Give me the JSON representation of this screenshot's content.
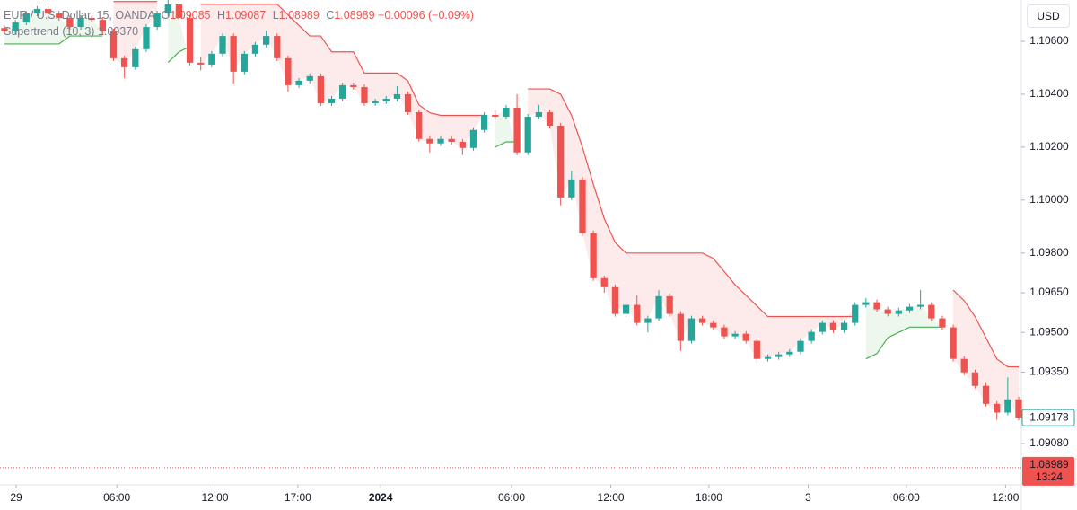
{
  "chart_data": {
    "type": "candlestick",
    "legend": {
      "symbol": "EUR / U.S. Dollar, 15, OANDA",
      "o_label": "O",
      "o": "1.09085",
      "h_label": "H",
      "h": "1.09087",
      "l_label": "L",
      "l": "1.08989",
      "c_label": "C",
      "c": "1.08989",
      "change": "−0.00096 (−0.09%)"
    },
    "currency": "USD",
    "up_color": "#26a69a",
    "down_color": "#ef5350",
    "ylim": [
      1.08924,
      1.10756
    ],
    "yticks": [
      {
        "value": 1.106,
        "label": "1.10600"
      },
      {
        "value": 1.104,
        "label": "1.10400"
      },
      {
        "value": 1.102,
        "label": "1.10200"
      },
      {
        "value": 1.1,
        "label": "1.10000"
      },
      {
        "value": 1.098,
        "label": "1.09800"
      },
      {
        "value": 1.0965,
        "label": "1.09650"
      },
      {
        "value": 1.095,
        "label": "1.09500"
      },
      {
        "value": 1.0935,
        "label": "1.09350"
      },
      {
        "value": 1.0908,
        "label": "1.09080"
      }
    ],
    "xticks": [
      {
        "value": 1.07,
        "label": "29"
      },
      {
        "value": 10.3,
        "label": "06:00"
      },
      {
        "value": 19.3,
        "label": "12:00"
      },
      {
        "value": 26.9,
        "label": "17:00"
      },
      {
        "value": 34.5,
        "label": "2024"
      },
      {
        "value": 46.5,
        "label": "06:00"
      },
      {
        "value": 55.6,
        "label": "12:00"
      },
      {
        "value": 64.6,
        "label": "18:00"
      },
      {
        "value": 73.7,
        "label": "3"
      },
      {
        "value": 82.7,
        "label": "06:00"
      },
      {
        "value": 91.8,
        "label": "12:00"
      }
    ],
    "open": [
      1.1065,
      1.10637,
      1.10671,
      1.10705,
      1.10722,
      1.10705,
      1.10688,
      1.10654,
      1.10688,
      1.10681,
      1.10637,
      1.10536,
      1.10502,
      1.1057,
      1.10654,
      1.10705,
      1.10739,
      1.10688,
      1.10519,
      1.10512,
      1.10553,
      1.1062,
      1.10485,
      1.10553,
      1.10587,
      1.1062,
      1.10536,
      1.10434,
      1.10451,
      1.10468,
      1.10366,
      1.10383,
      1.10434,
      1.10427,
      1.10366,
      1.10373,
      1.10383,
      1.104,
      1.10332,
      1.10231,
      1.10214,
      1.10231,
      1.1022,
      1.10197,
      1.10265,
      1.10322,
      1.10315,
      1.10349,
      1.1018,
      1.10315,
      1.10332,
      1.10281,
      1.1001,
      1.10078,
      1.09875,
      1.09705,
      1.09671,
      1.0957,
      1.09604,
      1.09536,
      1.09553,
      1.09637,
      1.0957,
      1.09468,
      1.09553,
      1.09536,
      1.09519,
      1.09485,
      1.09495,
      1.09468,
      1.094,
      1.09407,
      1.09417,
      1.09427,
      1.09468,
      1.09502,
      1.09536,
      1.09508,
      1.09536,
      1.09604,
      1.09614,
      1.09587,
      1.0957,
      1.09583,
      1.09597,
      1.09604,
      1.09553,
      1.09519,
      1.094,
      1.09349,
      1.09298,
      1.0923,
      1.09197,
      1.09247
    ],
    "high": [
      1.1066,
      1.10681,
      1.10715,
      1.10732,
      1.10732,
      1.10715,
      1.10698,
      1.10698,
      1.10698,
      1.10691,
      1.10647,
      1.10546,
      1.1058,
      1.10664,
      1.10715,
      1.10756,
      1.10749,
      1.10698,
      1.1054,
      1.10563,
      1.1063,
      1.1063,
      1.10563,
      1.10597,
      1.1064,
      1.1063,
      1.10546,
      1.10461,
      1.10478,
      1.10478,
      1.10393,
      1.10444,
      1.10444,
      1.10437,
      1.10383,
      1.10393,
      1.1043,
      1.1041,
      1.10342,
      1.10241,
      1.10241,
      1.10241,
      1.1023,
      1.10275,
      1.10332,
      1.1034,
      1.10359,
      1.104,
      1.10325,
      1.1036,
      1.10342,
      1.10291,
      1.1011,
      1.10088,
      1.09885,
      1.09715,
      1.09681,
      1.09614,
      1.0964,
      1.09563,
      1.0966,
      1.09647,
      1.0958,
      1.09563,
      1.09563,
      1.09546,
      1.09529,
      1.09505,
      1.09505,
      1.09478,
      1.09417,
      1.09427,
      1.09437,
      1.09478,
      1.09512,
      1.09546,
      1.09546,
      1.09546,
      1.09614,
      1.0963,
      1.09624,
      1.09597,
      1.09593,
      1.09607,
      1.0966,
      1.09614,
      1.09563,
      1.09529,
      1.0941,
      1.09359,
      1.09308,
      1.0924,
      1.0933,
      1.09257
    ],
    "low": [
      1.10627,
      1.10627,
      1.10661,
      1.10695,
      1.10695,
      1.10678,
      1.10644,
      1.10644,
      1.10671,
      1.10627,
      1.10526,
      1.1046,
      1.10492,
      1.1056,
      1.10644,
      1.10695,
      1.10678,
      1.10509,
      1.1049,
      1.10502,
      1.10543,
      1.1044,
      1.10475,
      1.10543,
      1.10577,
      1.10526,
      1.1041,
      1.10424,
      1.10441,
      1.10356,
      1.10356,
      1.10373,
      1.10417,
      1.10356,
      1.10356,
      1.10363,
      1.10373,
      1.10322,
      1.10221,
      1.1018,
      1.10204,
      1.1021,
      1.1017,
      1.10187,
      1.10255,
      1.10305,
      1.10305,
      1.1017,
      1.1017,
      1.10305,
      1.10271,
      1.0998,
      1.1,
      1.09865,
      1.09695,
      1.0965,
      1.0956,
      1.0956,
      1.09526,
      1.095,
      1.09543,
      1.0956,
      1.0943,
      1.09458,
      1.09526,
      1.09509,
      1.09475,
      1.09475,
      1.09458,
      1.09385,
      1.0939,
      1.09397,
      1.09407,
      1.09417,
      1.09458,
      1.09492,
      1.09498,
      1.09498,
      1.09526,
      1.09594,
      1.09577,
      1.0956,
      1.0956,
      1.09573,
      1.09587,
      1.09543,
      1.09509,
      1.0939,
      1.09339,
      1.09288,
      1.0922,
      1.0917,
      1.09187,
      1.09168
    ],
    "close": [
      1.10637,
      1.10671,
      1.10705,
      1.10722,
      1.10705,
      1.10688,
      1.10654,
      1.10688,
      1.10681,
      1.10637,
      1.10536,
      1.10502,
      1.1057,
      1.10654,
      1.10705,
      1.10739,
      1.10688,
      1.10519,
      1.10512,
      1.10553,
      1.1062,
      1.10485,
      1.10553,
      1.10587,
      1.1062,
      1.10536,
      1.10434,
      1.10451,
      1.10468,
      1.10366,
      1.10383,
      1.10434,
      1.10427,
      1.10366,
      1.10373,
      1.10383,
      1.104,
      1.10332,
      1.10231,
      1.10214,
      1.10231,
      1.1022,
      1.10197,
      1.10265,
      1.10322,
      1.10315,
      1.10349,
      1.1018,
      1.10315,
      1.10332,
      1.10281,
      1.1001,
      1.10078,
      1.09875,
      1.09705,
      1.09671,
      1.0957,
      1.09604,
      1.09536,
      1.09553,
      1.09637,
      1.0957,
      1.09468,
      1.09553,
      1.09536,
      1.09519,
      1.09485,
      1.09495,
      1.09468,
      1.094,
      1.09407,
      1.09417,
      1.09427,
      1.09468,
      1.09502,
      1.09536,
      1.09508,
      1.09536,
      1.09604,
      1.09614,
      1.09587,
      1.0957,
      1.09583,
      1.09597,
      1.09604,
      1.09553,
      1.09519,
      1.094,
      1.09349,
      1.09298,
      1.0923,
      1.09197,
      1.09247,
      1.09178
    ],
    "supertrend": {
      "name": "Supertrend (10, 3)",
      "value_label": "1.09370",
      "upper_color": "#ef5350",
      "lower_color": "#4caf50",
      "upper": [
        null,
        null,
        null,
        null,
        null,
        null,
        null,
        null,
        null,
        null,
        1.1075,
        1.1075,
        1.1075,
        1.1075,
        1.1075,
        null,
        null,
        null,
        1.1074,
        1.1074,
        1.1074,
        1.1074,
        1.1074,
        1.1074,
        1.1074,
        1.1074,
        1.107,
        1.1066,
        1.1062,
        1.1062,
        1.1056,
        1.1056,
        1.1056,
        1.1048,
        1.1048,
        1.1048,
        1.1048,
        1.1045,
        1.1036,
        1.1033,
        1.1032,
        1.1032,
        1.1032,
        1.1032,
        1.1032,
        null,
        null,
        null,
        1.1042,
        1.1042,
        1.1042,
        1.104,
        1.1032,
        1.102,
        1.1006,
        1.0993,
        1.0984,
        1.098,
        1.098,
        1.098,
        1.098,
        1.098,
        1.098,
        1.098,
        1.098,
        1.0978,
        1.0973,
        1.0968,
        1.0964,
        1.096,
        1.0956,
        1.0956,
        1.0956,
        1.0956,
        1.0956,
        1.0956,
        1.0956,
        1.0956,
        1.0956,
        null,
        null,
        null,
        null,
        null,
        null,
        null,
        null,
        1.0966,
        1.0962,
        1.0956,
        1.0948,
        1.094,
        1.0937,
        1.0937
      ],
      "lower": [
        1.1059,
        1.1059,
        1.1059,
        1.1059,
        1.1059,
        1.1059,
        1.1062,
        1.1062,
        1.1062,
        1.1062,
        null,
        null,
        null,
        null,
        null,
        1.1052,
        1.1056,
        1.1058,
        null,
        null,
        null,
        null,
        null,
        null,
        null,
        null,
        null,
        null,
        null,
        null,
        null,
        null,
        null,
        null,
        null,
        null,
        null,
        null,
        null,
        null,
        null,
        null,
        null,
        null,
        null,
        1.102,
        1.1022,
        1.1022,
        null,
        null,
        null,
        null,
        null,
        null,
        null,
        null,
        null,
        null,
        null,
        null,
        null,
        null,
        null,
        null,
        null,
        null,
        null,
        null,
        null,
        null,
        null,
        null,
        null,
        null,
        null,
        null,
        null,
        null,
        null,
        1.094,
        1.0942,
        1.0948,
        1.095,
        1.0952,
        1.0952,
        1.0952,
        1.0952,
        null,
        null,
        null,
        null,
        null,
        null,
        null
      ]
    },
    "last_price": {
      "value": 1.09178,
      "label": "1.09178"
    },
    "price_line": {
      "value": 1.08989,
      "label": "1.08989",
      "countdown": "13:24"
    }
  }
}
